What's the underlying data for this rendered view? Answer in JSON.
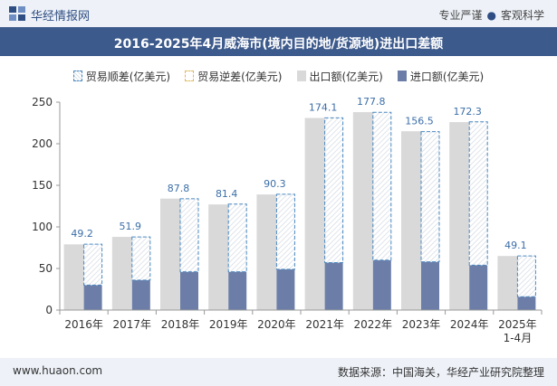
{
  "header": {
    "brand": "华经情报网",
    "tag1": "专业严谨",
    "tag2": "客观科学"
  },
  "footer": {
    "site": "www.huaon.com",
    "source": "数据来源：中国海关，华经产业研究院整理"
  },
  "colors": {
    "export": "#d9d9d9",
    "import": "#6c7ea8",
    "surplus_border": "#4a88c0",
    "deficit_border": "#e0b85e",
    "title_bg": "#3d5a8c",
    "label": "#3b6ea8"
  },
  "chart_data": {
    "type": "bar",
    "title": "2016-2025年4月威海市(境内目的地/货源地)进出口差额",
    "categories": [
      "2016年",
      "2017年",
      "2018年",
      "2019年",
      "2020年",
      "2021年",
      "2022年",
      "2023年",
      "2024年",
      "2025年\n1-4月"
    ],
    "series": [
      {
        "name": "贸易顺差(亿美元)",
        "values": [
          49.2,
          51.9,
          87.8,
          81.4,
          90.3,
          174.1,
          177.8,
          156.5,
          172.3,
          49.1
        ]
      },
      {
        "name": "贸易逆差(亿美元)",
        "values": [
          0,
          0,
          0,
          0,
          0,
          0,
          0,
          0,
          0,
          0
        ]
      },
      {
        "name": "出口额(亿美元)",
        "values": [
          79,
          88,
          134,
          127,
          139,
          231,
          238,
          215,
          226,
          65
        ]
      },
      {
        "name": "进口额(亿美元)",
        "values": [
          30,
          36,
          46,
          46,
          49,
          57,
          60,
          58,
          54,
          16
        ]
      }
    ],
    "ylim": [
      0,
      250
    ],
    "yticks": [
      0,
      50,
      100,
      150,
      200,
      250
    ],
    "grid": false,
    "legend_position": "top"
  }
}
